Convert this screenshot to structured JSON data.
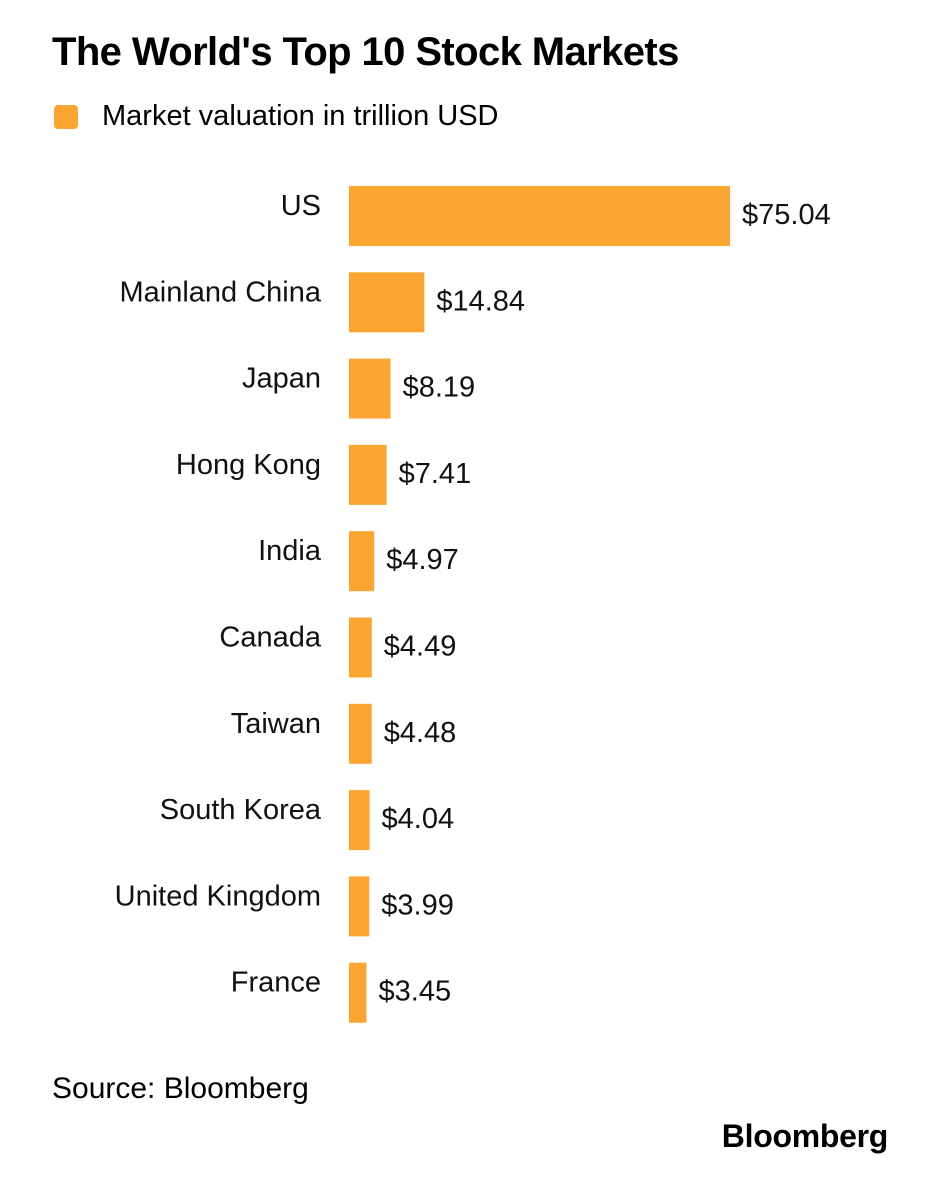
{
  "colors": {
    "bar": "#FBA633",
    "text": "#111111"
  },
  "source": "Source: Bloomberg",
  "brand": "Bloomberg",
  "chart_data": {
    "type": "bar",
    "orientation": "horizontal",
    "title": "The World's Top 10 Stock Markets",
    "legend": [
      "Market valuation in trillion USD"
    ],
    "legend_position": "top-left",
    "xlabel": "",
    "ylabel": "",
    "grid": false,
    "xlim": [
      0,
      75.04
    ],
    "categories": [
      "US",
      "Mainland China",
      "Japan",
      "Hong Kong",
      "India",
      "Canada",
      "Taiwan",
      "South Korea",
      "United Kingdom",
      "France"
    ],
    "values": [
      75.04,
      14.84,
      8.19,
      7.41,
      4.97,
      4.49,
      4.48,
      4.04,
      3.99,
      3.45
    ],
    "value_labels": [
      "$75.04",
      "$14.84",
      "$8.19",
      "$7.41",
      "$4.97",
      "$4.49",
      "$4.48",
      "$4.04",
      "$3.99",
      "$3.45"
    ]
  }
}
